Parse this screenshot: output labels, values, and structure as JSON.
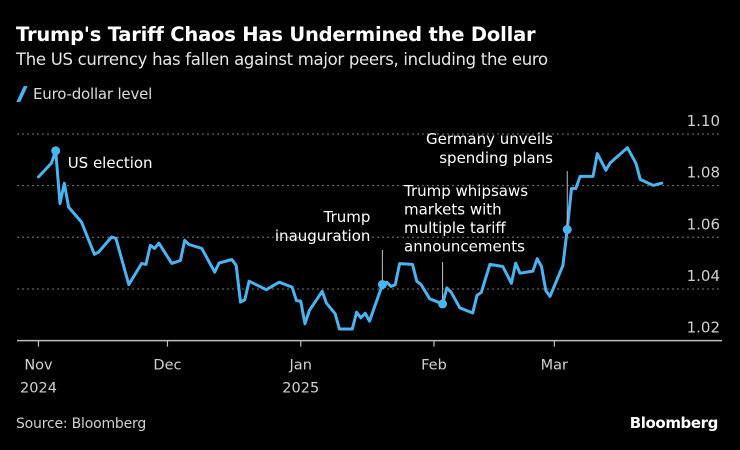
{
  "header": {
    "title": "Trump's Tariff Chaos Has Undermined the Dollar",
    "subtitle": "The US currency has fallen against major peers, including the euro"
  },
  "footer": {
    "source": "Source: Bloomberg",
    "logo": "Bloomberg"
  },
  "chart_data": {
    "type": "line",
    "title": "Trump's Tariff Chaos Has Undermined the Dollar",
    "subtitle": "The US currency has fallen against major peers, including the euro",
    "legend_position": "top-left",
    "grid": true,
    "ylim": [
      1.02,
      1.1
    ],
    "xlim": [
      "2024-10-27",
      "2025-04-09"
    ],
    "y_ticks": [
      "1.02",
      "1.04",
      "1.06",
      "1.08",
      "1.10"
    ],
    "y_tick_values": [
      1.02,
      1.04,
      1.06,
      1.08,
      1.1
    ],
    "x_ticks": [
      {
        "date": "2024-11-01",
        "label": "Nov",
        "sub": "2024"
      },
      {
        "date": "2024-12-01",
        "label": "Dec",
        "sub": ""
      },
      {
        "date": "2025-01-01",
        "label": "Jan",
        "sub": "2025"
      },
      {
        "date": "2025-02-01",
        "label": "Feb",
        "sub": ""
      },
      {
        "date": "2025-03-01",
        "label": "Mar",
        "sub": ""
      }
    ],
    "colors": {
      "series": "#4bb4f0",
      "grid": "#7a7a7a",
      "axis": "#bdbdbd",
      "annotation_line": "#bdbdbd"
    },
    "series": [
      {
        "name": "Euro-dollar level",
        "points": [
          [
            "2024-11-01",
            1.0834
          ],
          [
            "2024-11-04",
            1.0887
          ],
          [
            "2024-11-05",
            1.0935
          ],
          [
            "2024-11-06",
            1.0731
          ],
          [
            "2024-11-07",
            1.0809
          ],
          [
            "2024-11-08",
            1.0717
          ],
          [
            "2024-11-11",
            1.0659
          ],
          [
            "2024-11-14",
            1.0534
          ],
          [
            "2024-11-15",
            1.0543
          ],
          [
            "2024-11-18",
            1.0601
          ],
          [
            "2024-11-19",
            1.0596
          ],
          [
            "2024-11-22",
            1.0417
          ],
          [
            "2024-11-25",
            1.0499
          ],
          [
            "2024-11-26",
            1.0495
          ],
          [
            "2024-11-27",
            1.0569
          ],
          [
            "2024-11-28",
            1.0557
          ],
          [
            "2024-11-29",
            1.0577
          ],
          [
            "2024-12-02",
            1.0499
          ],
          [
            "2024-12-04",
            1.051
          ],
          [
            "2024-12-05",
            1.0588
          ],
          [
            "2024-12-06",
            1.0572
          ],
          [
            "2024-12-09",
            1.0557
          ],
          [
            "2024-12-12",
            1.0465
          ],
          [
            "2024-12-13",
            1.05
          ],
          [
            "2024-12-16",
            1.0514
          ],
          [
            "2024-12-17",
            1.0491
          ],
          [
            "2024-12-18",
            1.0349
          ],
          [
            "2024-12-19",
            1.0358
          ],
          [
            "2024-12-20",
            1.043
          ],
          [
            "2024-12-24",
            1.0397
          ],
          [
            "2024-12-27",
            1.0426
          ],
          [
            "2024-12-30",
            1.0407
          ],
          [
            "2024-12-31",
            1.0355
          ],
          [
            "2025-01-01",
            1.0353
          ],
          [
            "2025-01-02",
            1.0265
          ],
          [
            "2025-01-03",
            1.0316
          ],
          [
            "2025-01-06",
            1.0391
          ],
          [
            "2025-01-07",
            1.0345
          ],
          [
            "2025-01-09",
            1.0304
          ],
          [
            "2025-01-10",
            1.0245
          ],
          [
            "2025-01-13",
            1.0245
          ],
          [
            "2025-01-14",
            1.031
          ],
          [
            "2025-01-15",
            1.0288
          ],
          [
            "2025-01-16",
            1.0306
          ],
          [
            "2025-01-17",
            1.0275
          ],
          [
            "2025-01-20",
            1.0417
          ],
          [
            "2025-01-21",
            1.0426
          ],
          [
            "2025-01-22",
            1.041
          ],
          [
            "2025-01-23",
            1.0417
          ],
          [
            "2025-01-24",
            1.0498
          ],
          [
            "2025-01-27",
            1.0495
          ],
          [
            "2025-01-28",
            1.043
          ],
          [
            "2025-01-29",
            1.0417
          ],
          [
            "2025-01-31",
            1.0362
          ],
          [
            "2025-02-03",
            1.0342
          ],
          [
            "2025-02-04",
            1.0404
          ],
          [
            "2025-02-05",
            1.0387
          ],
          [
            "2025-02-07",
            1.0327
          ],
          [
            "2025-02-10",
            1.0307
          ],
          [
            "2025-02-11",
            1.0375
          ],
          [
            "2025-02-12",
            1.0387
          ],
          [
            "2025-02-14",
            1.0495
          ],
          [
            "2025-02-17",
            1.0487
          ],
          [
            "2025-02-19",
            1.0422
          ],
          [
            "2025-02-20",
            1.05
          ],
          [
            "2025-02-21",
            1.0461
          ],
          [
            "2025-02-24",
            1.0469
          ],
          [
            "2025-02-25",
            1.0517
          ],
          [
            "2025-02-26",
            1.0487
          ],
          [
            "2025-02-27",
            1.0394
          ],
          [
            "2025-02-28",
            1.0371
          ],
          [
            "2025-03-03",
            1.0491
          ],
          [
            "2025-03-04",
            1.063
          ],
          [
            "2025-03-05",
            1.0789
          ],
          [
            "2025-03-06",
            1.0789
          ],
          [
            "2025-03-07",
            1.0836
          ],
          [
            "2025-03-10",
            1.0836
          ],
          [
            "2025-03-11",
            1.0924
          ],
          [
            "2025-03-13",
            1.086
          ],
          [
            "2025-03-14",
            1.0888
          ],
          [
            "2025-03-18",
            1.0947
          ],
          [
            "2025-03-20",
            1.0886
          ],
          [
            "2025-03-21",
            1.0824
          ],
          [
            "2025-03-24",
            1.0801
          ],
          [
            "2025-03-26",
            1.081
          ]
        ]
      }
    ],
    "annotations": [
      {
        "date": "2024-11-05",
        "value": 1.0935,
        "lines": [
          "US election"
        ]
      },
      {
        "date": "2025-01-20",
        "value": 1.0417,
        "lines": [
          "Trump",
          "inauguration"
        ]
      },
      {
        "date": "2025-02-03",
        "value": 1.0342,
        "lines": [
          "Trump whipsaws",
          "markets with",
          "multiple tariff",
          "announcements"
        ]
      },
      {
        "date": "2025-03-04",
        "value": 1.063,
        "lines": [
          "Germany unveils",
          "spending plans"
        ]
      }
    ]
  }
}
